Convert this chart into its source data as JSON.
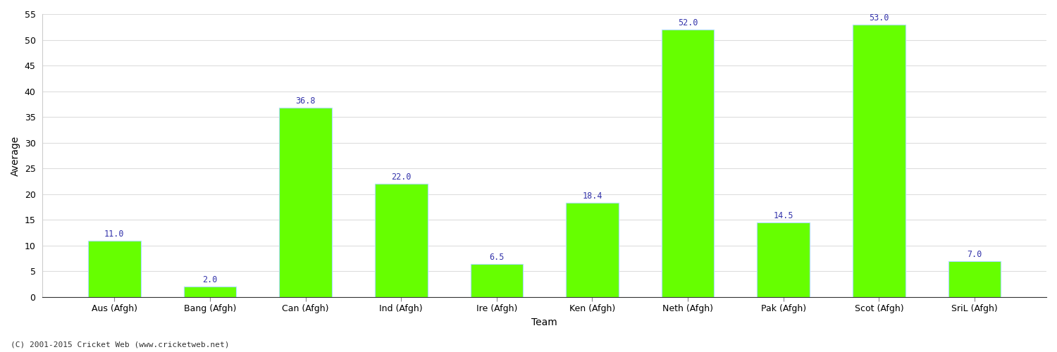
{
  "categories": [
    "Aus (Afgh)",
    "Bang (Afgh)",
    "Can (Afgh)",
    "Ind (Afgh)",
    "Ire (Afgh)",
    "Ken (Afgh)",
    "Neth (Afgh)",
    "Pak (Afgh)",
    "Scot (Afgh)",
    "SriL (Afgh)"
  ],
  "values": [
    11.0,
    2.0,
    36.8,
    22.0,
    6.5,
    18.4,
    52.0,
    14.5,
    53.0,
    7.0
  ],
  "bar_color": "#66ff00",
  "bar_edge_color": "#aaddff",
  "value_color": "#3333aa",
  "xlabel": "Team",
  "ylabel": "Average",
  "ylim": [
    0,
    55
  ],
  "yticks": [
    0,
    5,
    10,
    15,
    20,
    25,
    30,
    35,
    40,
    45,
    50,
    55
  ],
  "background_color": "#ffffff",
  "plot_bg_color": "#ffffff",
  "grid_color": "#dddddd",
  "footnote": "(C) 2001-2015 Cricket Web (www.cricketweb.net)",
  "value_fontsize": 8.5,
  "axis_label_fontsize": 10,
  "tick_fontsize": 9,
  "bar_width": 0.55
}
